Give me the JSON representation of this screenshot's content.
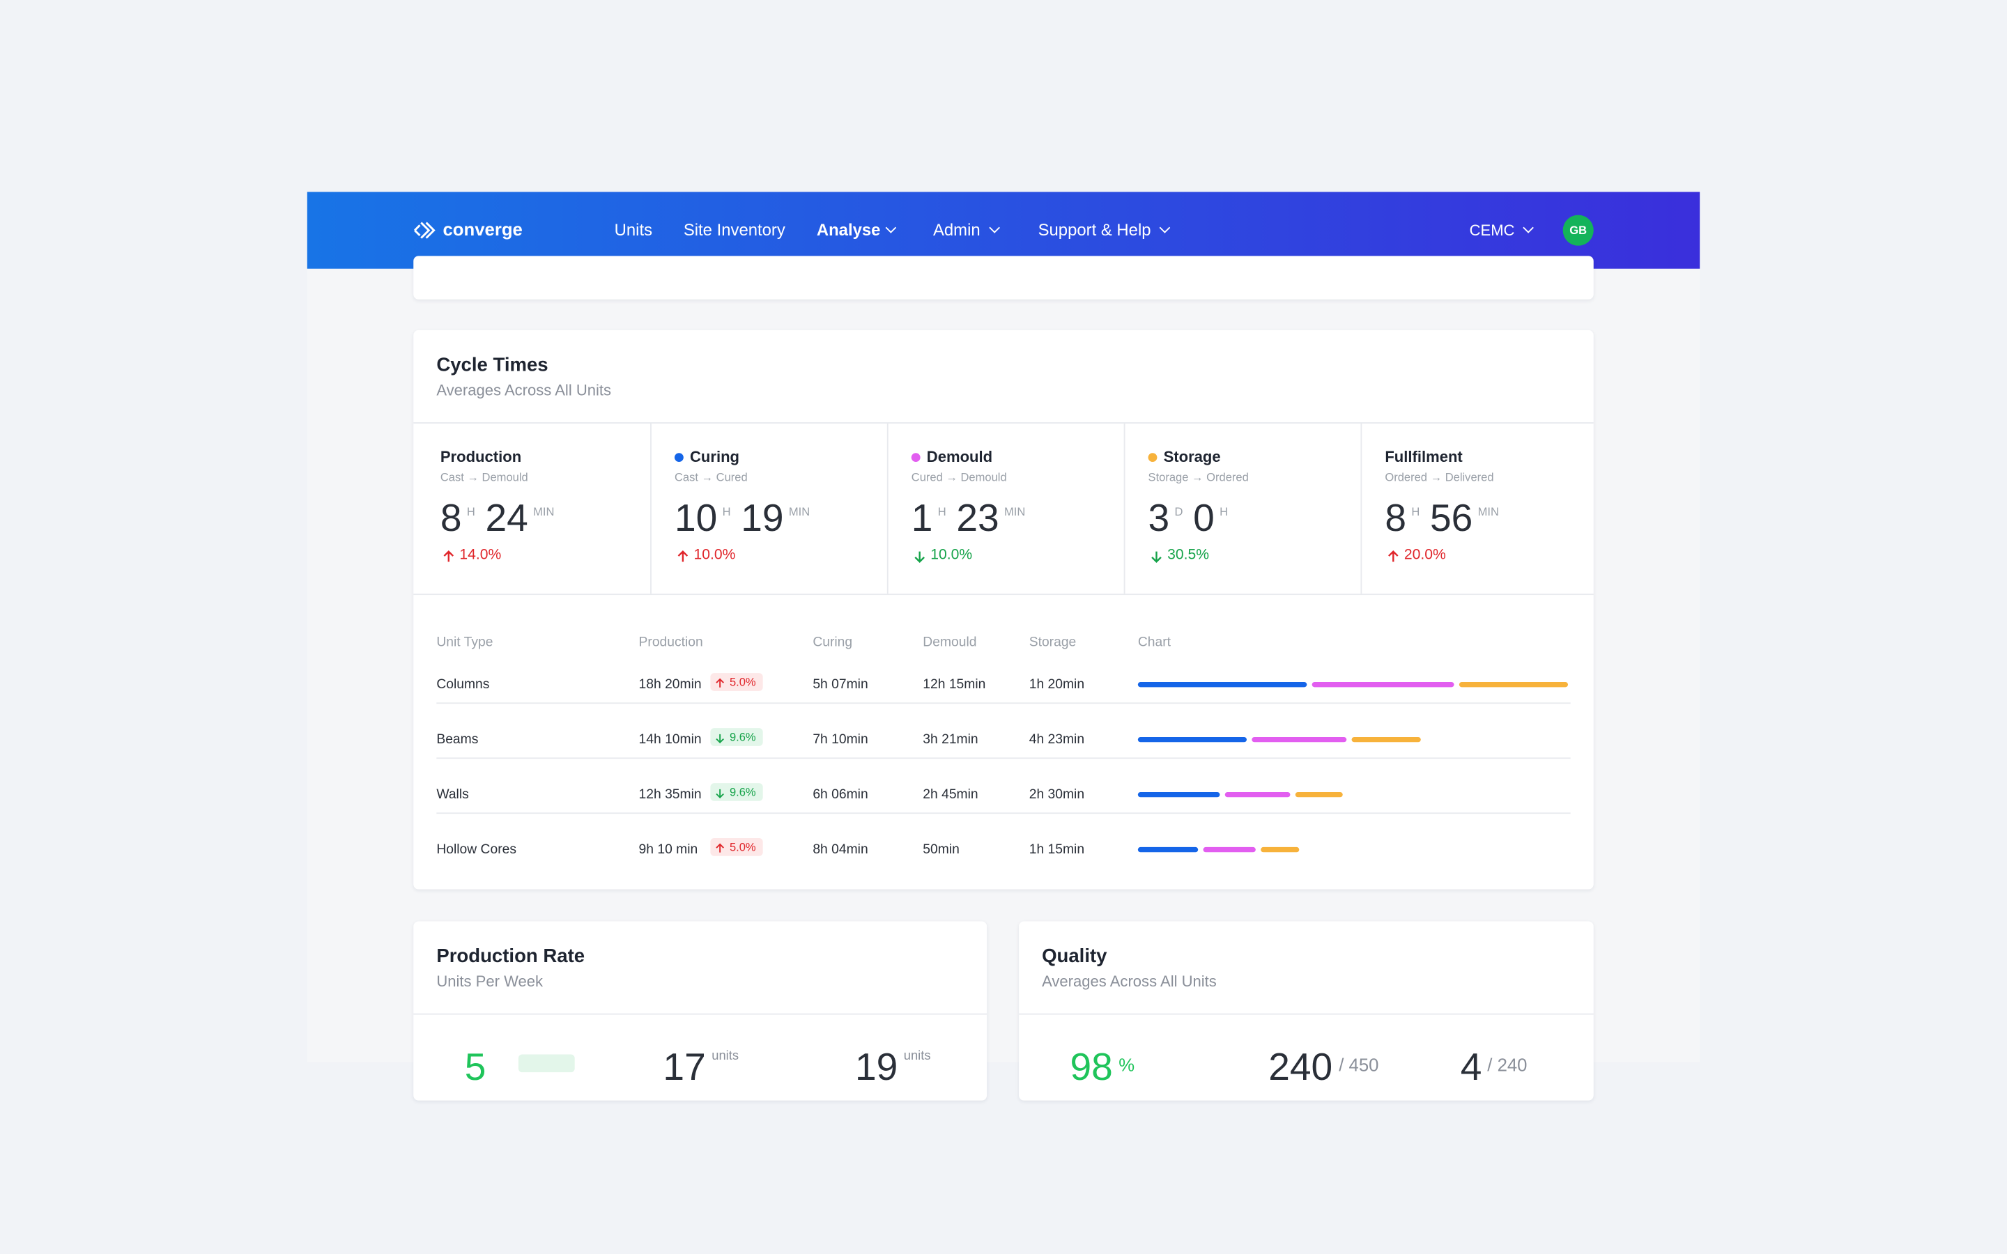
{
  "nav": {
    "brand": "converge",
    "items": [
      "Units",
      "Site Inventory",
      "Analyse",
      "Admin",
      "Support & Help"
    ],
    "org": "CEMC",
    "avatar": "GB"
  },
  "cycle_times": {
    "title": "Cycle Times",
    "subtitle": "Averages Across All Units",
    "stages": [
      {
        "name": "Production",
        "route": "Cast → Demould",
        "parts": [
          {
            "value": "8",
            "unit": "H"
          },
          {
            "value": "24",
            "unit": "MIN"
          }
        ],
        "change": "14.0%",
        "trend": "up"
      },
      {
        "name": "Curing",
        "color": "#1565e8",
        "route": "Cast → Cured",
        "parts": [
          {
            "value": "10",
            "unit": "H"
          },
          {
            "value": "19",
            "unit": "MIN"
          }
        ],
        "change": "10.0%",
        "trend": "up"
      },
      {
        "name": "Demould",
        "color": "#e25ef0",
        "route": "Cured → Demould",
        "parts": [
          {
            "value": "1",
            "unit": "H"
          },
          {
            "value": "23",
            "unit": "MIN"
          }
        ],
        "change": "10.0%",
        "trend": "down"
      },
      {
        "name": "Storage",
        "color": "#f7b23b",
        "route": "Storage → Ordered",
        "parts": [
          {
            "value": "3",
            "unit": "D"
          },
          {
            "value": "0",
            "unit": "H"
          }
        ],
        "change": "30.5%",
        "trend": "down"
      },
      {
        "name": "Fullfilment",
        "route": "Ordered → Delivered",
        "parts": [
          {
            "value": "8",
            "unit": "H"
          },
          {
            "value": "56",
            "unit": "MIN"
          }
        ],
        "change": "20.0%",
        "trend": "up"
      }
    ],
    "table": {
      "headers": [
        "Unit Type",
        "Production",
        "Curing",
        "Demould",
        "Storage",
        "Chart"
      ],
      "rows": [
        {
          "unit_type": "Columns",
          "production": "18h 20min",
          "badge": "5.0%",
          "badge_trend": "up",
          "curing": "5h 07min",
          "demould": "12h 15min",
          "storage": "1h 20min",
          "bars": [
            39,
            33,
            25
          ]
        },
        {
          "unit_type": "Beams",
          "production": "14h 10min",
          "badge": "9.6%",
          "badge_trend": "down",
          "curing": "7h 10min",
          "demould": "3h 21min",
          "storage": "4h 23min",
          "bars": [
            25,
            22,
            16
          ]
        },
        {
          "unit_type": "Walls",
          "production": "12h 35min",
          "badge": "9.6%",
          "badge_trend": "down",
          "curing": "6h 06min",
          "demould": "2h 45min",
          "storage": "2h 30min",
          "bars": [
            19,
            15,
            11
          ]
        },
        {
          "unit_type": "Hollow Cores",
          "production": "9h 10 min",
          "badge": "5.0%",
          "badge_trend": "up",
          "curing": "8h 04min",
          "demould": "50min",
          "storage": "1h 15min",
          "bars": [
            14,
            12,
            9
          ]
        }
      ]
    }
  },
  "production_rate": {
    "title": "Production Rate",
    "subtitle": "Units Per Week",
    "stats": [
      {
        "value": "5",
        "suffix": ""
      },
      {
        "value": "17",
        "suffix": "units"
      },
      {
        "value": "19",
        "suffix": "units"
      }
    ]
  },
  "quality": {
    "title": "Quality",
    "subtitle": "Averages Across All Units",
    "stats": [
      {
        "value": "98",
        "suffix": "%"
      },
      {
        "value": "240",
        "suffix": "/ 450"
      },
      {
        "value": "4",
        "suffix": "/ 240"
      }
    ]
  }
}
